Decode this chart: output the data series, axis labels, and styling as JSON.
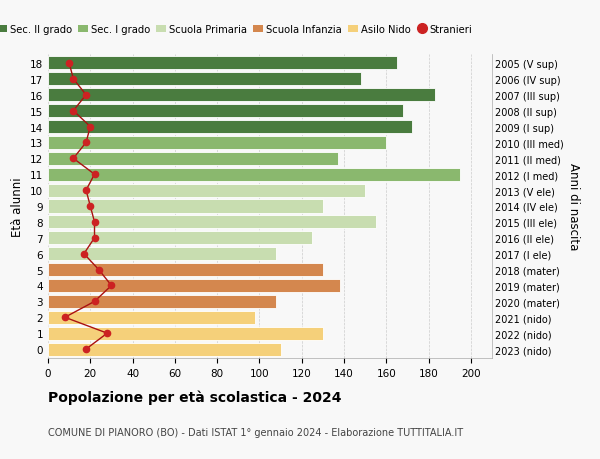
{
  "ages": [
    0,
    1,
    2,
    3,
    4,
    5,
    6,
    7,
    8,
    9,
    10,
    11,
    12,
    13,
    14,
    15,
    16,
    17,
    18
  ],
  "values": [
    110,
    130,
    98,
    108,
    138,
    130,
    108,
    125,
    155,
    130,
    150,
    195,
    137,
    160,
    172,
    168,
    183,
    148,
    165
  ],
  "stranieri": [
    18,
    28,
    8,
    22,
    30,
    24,
    17,
    22,
    22,
    20,
    18,
    22,
    12,
    18,
    20,
    12,
    18,
    12,
    10
  ],
  "right_labels": [
    "2023 (nido)",
    "2022 (nido)",
    "2021 (nido)",
    "2020 (mater)",
    "2019 (mater)",
    "2018 (mater)",
    "2017 (I ele)",
    "2016 (II ele)",
    "2015 (III ele)",
    "2014 (IV ele)",
    "2013 (V ele)",
    "2012 (I med)",
    "2011 (II med)",
    "2010 (III med)",
    "2009 (I sup)",
    "2008 (II sup)",
    "2007 (III sup)",
    "2006 (IV sup)",
    "2005 (V sup)"
  ],
  "bar_colors": [
    "#f5d07a",
    "#f5d07a",
    "#f5d07a",
    "#d4874e",
    "#d4874e",
    "#d4874e",
    "#c8ddb0",
    "#c8ddb0",
    "#c8ddb0",
    "#c8ddb0",
    "#c8ddb0",
    "#8ab86e",
    "#8ab86e",
    "#8ab86e",
    "#4a7c3f",
    "#4a7c3f",
    "#4a7c3f",
    "#4a7c3f",
    "#4a7c3f"
  ],
  "legend_labels": [
    "Sec. II grado",
    "Sec. I grado",
    "Scuola Primaria",
    "Scuola Infanzia",
    "Asilo Nido",
    "Stranieri"
  ],
  "legend_colors": [
    "#4a7c3f",
    "#8ab86e",
    "#c8ddb0",
    "#d4874e",
    "#f5d07a",
    "#cc2222"
  ],
  "ylabel": "Età alunni",
  "right_ylabel": "Anni di nascita",
  "title": "Popolazione per età scolastica - 2024",
  "subtitle": "COMUNE DI PIANORO (BO) - Dati ISTAT 1° gennaio 2024 - Elaborazione TUTTITALIA.IT",
  "xlim": [
    0,
    210
  ],
  "xticks": [
    0,
    20,
    40,
    60,
    80,
    100,
    120,
    140,
    160,
    180,
    200
  ],
  "bg_color": "#f8f8f8",
  "grid_color": "#cccccc"
}
